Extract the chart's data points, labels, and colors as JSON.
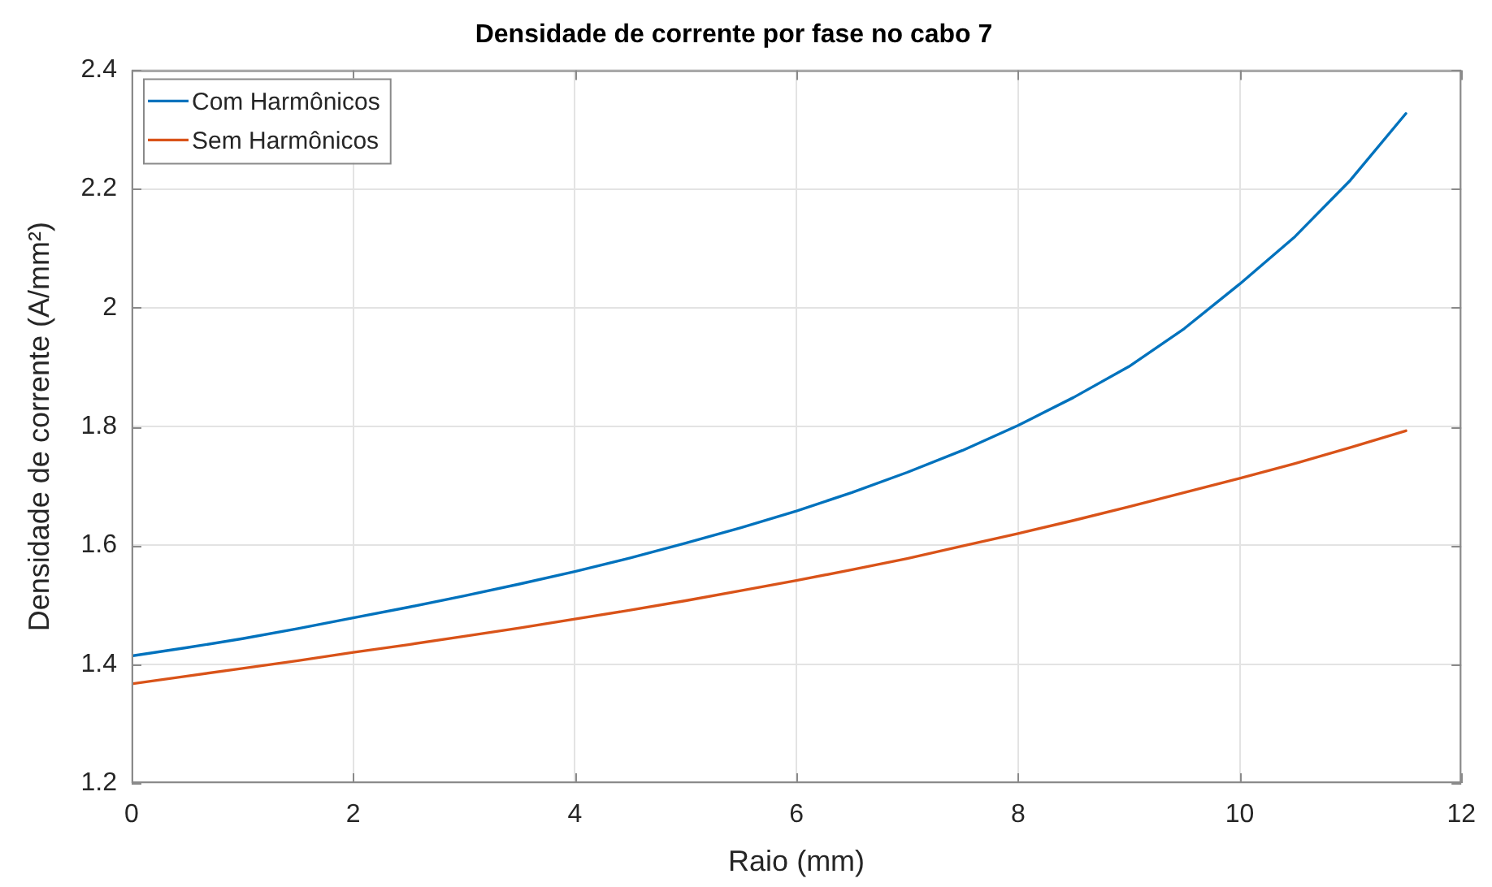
{
  "chart_data": {
    "type": "line",
    "title": "Densidade de corrente por fase no cabo 7",
    "xlabel": "Raio (mm)",
    "ylabel": "Densidade de corrente (A/mm²)",
    "x": [
      0,
      0.5,
      1,
      1.5,
      2,
      2.5,
      3,
      3.5,
      4,
      4.5,
      5,
      5.5,
      6,
      6.5,
      7,
      7.5,
      8,
      8.5,
      9,
      9.5,
      10,
      10.5,
      11,
      11.5
    ],
    "series": [
      {
        "name": "Com Harmônicos",
        "color": "#0072bd",
        "values": [
          1.414,
          1.428,
          1.443,
          1.46,
          1.478,
          1.496,
          1.515,
          1.535,
          1.556,
          1.579,
          1.604,
          1.63,
          1.658,
          1.689,
          1.723,
          1.76,
          1.802,
          1.849,
          1.901,
          1.965,
          2.04,
          2.12,
          2.215,
          2.327
        ]
      },
      {
        "name": "Sem Harmônicos",
        "color": "#d95319",
        "values": [
          1.367,
          1.38,
          1.393,
          1.406,
          1.42,
          1.433,
          1.447,
          1.461,
          1.476,
          1.491,
          1.507,
          1.524,
          1.541,
          1.559,
          1.578,
          1.599,
          1.62,
          1.642,
          1.665,
          1.689,
          1.713,
          1.738,
          1.765,
          1.793
        ]
      }
    ],
    "xlim": [
      0,
      12
    ],
    "ylim": [
      1.2,
      2.4
    ],
    "xticks": [
      0,
      2,
      4,
      6,
      8,
      10,
      12
    ],
    "yticks": [
      1.2,
      1.4,
      1.6,
      1.8,
      2,
      2.2,
      2.4
    ],
    "grid": true,
    "legend": "top left"
  }
}
